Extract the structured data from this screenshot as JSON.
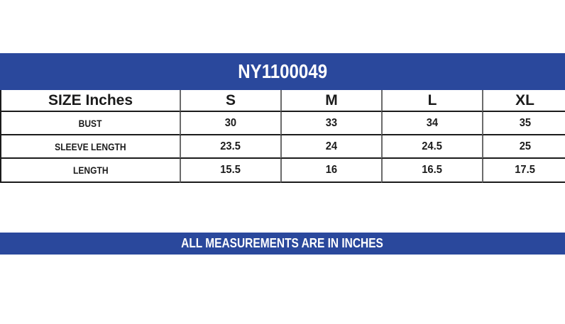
{
  "chart_data": {
    "type": "table",
    "title": "NY1100049",
    "columns": [
      "SIZE Inches",
      "S",
      "M",
      "L",
      "XL"
    ],
    "rows": [
      {
        "label": "BUST",
        "values": [
          "30",
          "33",
          "34",
          "35"
        ]
      },
      {
        "label": "SLEEVE LENGTH",
        "values": [
          "23.5",
          "24",
          "24.5",
          "25"
        ]
      },
      {
        "label": "LENGTH",
        "values": [
          "15.5",
          "16",
          "16.5",
          "17.5"
        ]
      }
    ],
    "footnote": "ALL MEASUREMENTS ARE IN INCHES"
  },
  "colors": {
    "banner_blue": "#2a489c",
    "banner_text": "#ffffff",
    "grid_line_black": "#1b1b1b",
    "divider_gray": "#6b6b6b",
    "table_text": "#1b1b1b",
    "background": "#ffffff"
  }
}
